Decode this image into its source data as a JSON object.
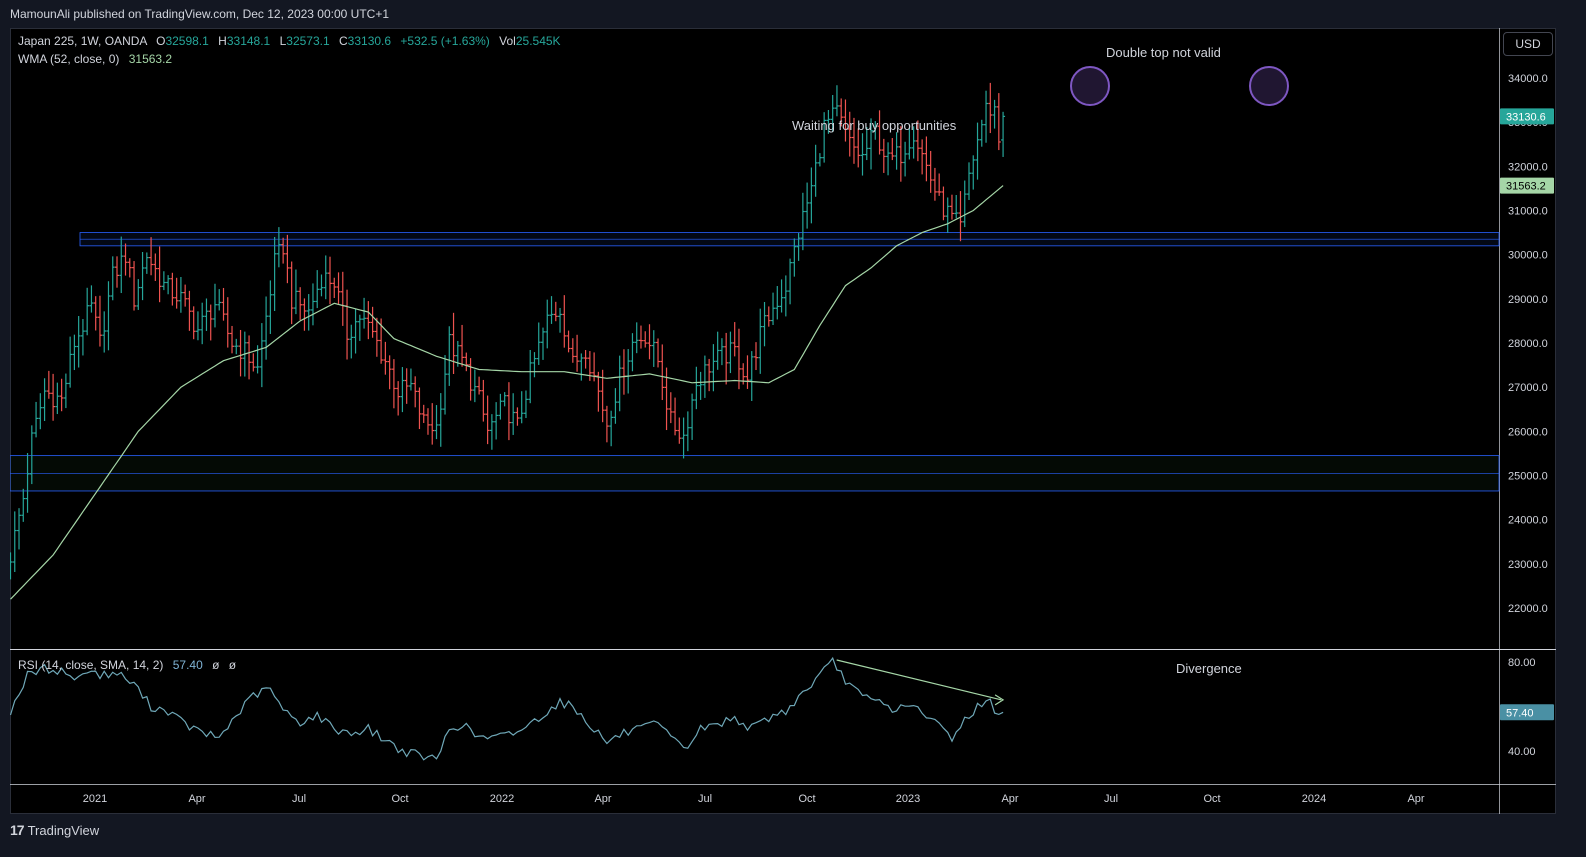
{
  "header": {
    "published_text": "MamounAli published on TradingView.com, Dec 12, 2023 00:00 UTC+1"
  },
  "legend": {
    "symbol": "Japan 225, 1W, OANDA",
    "o_label": "O",
    "o": "32598.1",
    "h_label": "H",
    "h": "33148.1",
    "l_label": "L",
    "l": "32573.1",
    "c_label": "C",
    "c": "33130.6",
    "change": "+532.5 (+1.63%)",
    "vol_label": "Vol",
    "vol": "25.545K",
    "wma_label": "WMA (52, close, 0)",
    "wma_value": "31563.2",
    "rsi_label": "RSI (14, close, SMA, 14, 2)",
    "rsi_value": "57.40",
    "rsi_extra1": "ø",
    "rsi_extra2": "ø"
  },
  "currency_button": "USD",
  "annotations": {
    "double_top": "Double top not valid",
    "waiting": "Waiting for buy opportunities",
    "divergence": "Divergence"
  },
  "badges": {
    "price": "33130.6",
    "wma": "31563.2",
    "rsi": "57.40"
  },
  "footer": {
    "logo_text": "TradingView",
    "logo_mark": "17"
  },
  "colors": {
    "up": "#26a69a",
    "down": "#ef5350",
    "wma": "#a5d6a7",
    "rsi": "#6fa8b8",
    "zone": "#2962ff",
    "circle": "#7e57c2"
  },
  "chart_data": [
    {
      "type": "ohlc",
      "ylim": [
        21200,
        34800
      ],
      "y_ticks": [
        "22000.0",
        "23000.0",
        "24000.0",
        "25000.0",
        "26000.0",
        "27000.0",
        "28000.0",
        "29000.0",
        "30000.0",
        "31000.0",
        "32000.0",
        "33000.0",
        "34000.0"
      ],
      "x_ticks": [
        "2021",
        "Apr",
        "Jul",
        "Oct",
        "2022",
        "Apr",
        "Jul",
        "Oct",
        "2023",
        "Apr",
        "Jul",
        "Oct",
        "2024",
        "Apr"
      ],
      "resistance_zone": [
        30200,
        30500
      ],
      "support_zone": [
        24650,
        25450
      ],
      "anchors": [
        [
          0,
          23200
        ],
        [
          3,
          24500
        ],
        [
          5,
          25800
        ],
        [
          8,
          26900
        ],
        [
          12,
          26700
        ],
        [
          15,
          28000
        ],
        [
          19,
          28800
        ],
        [
          21,
          28000
        ],
        [
          24,
          29500
        ],
        [
          27,
          30000
        ],
        [
          29,
          29000
        ],
        [
          32,
          30000
        ],
        [
          36,
          29300
        ],
        [
          40,
          29000
        ],
        [
          44,
          28300
        ],
        [
          48,
          28900
        ],
        [
          52,
          28000
        ],
        [
          55,
          27800
        ],
        [
          58,
          27400
        ],
        [
          62,
          29800
        ],
        [
          64,
          30200
        ],
        [
          66,
          29000
        ],
        [
          70,
          28700
        ],
        [
          73,
          29500
        ],
        [
          76,
          29400
        ],
        [
          79,
          28200
        ],
        [
          82,
          28600
        ],
        [
          85,
          28200
        ],
        [
          88,
          27600
        ],
        [
          91,
          26900
        ],
        [
          94,
          27000
        ],
        [
          97,
          26200
        ],
        [
          100,
          26100
        ],
        [
          103,
          28000
        ],
        [
          106,
          27600
        ],
        [
          110,
          26700
        ],
        [
          112,
          26000
        ],
        [
          116,
          26600
        ],
        [
          119,
          26100
        ],
        [
          122,
          27300
        ],
        [
          126,
          28500
        ],
        [
          129,
          28800
        ],
        [
          132,
          27500
        ],
        [
          135,
          27900
        ],
        [
          138,
          26900
        ],
        [
          140,
          26200
        ],
        [
          143,
          27200
        ],
        [
          146,
          28000
        ],
        [
          149,
          28200
        ],
        [
          152,
          27600
        ],
        [
          155,
          26200
        ],
        [
          158,
          25900
        ],
        [
          161,
          27100
        ],
        [
          164,
          27500
        ],
        [
          167,
          27700
        ],
        [
          170,
          27800
        ],
        [
          173,
          27200
        ],
        [
          176,
          28200
        ],
        [
          179,
          28800
        ],
        [
          182,
          29300
        ],
        [
          185,
          30500
        ],
        [
          188,
          31500
        ],
        [
          191,
          32900
        ],
        [
          194,
          33200
        ],
        [
          197,
          32500
        ],
        [
          200,
          32200
        ],
        [
          203,
          32800
        ],
        [
          206,
          32100
        ],
        [
          209,
          32300
        ],
        [
          212,
          32800
        ],
        [
          215,
          32000
        ],
        [
          218,
          31200
        ],
        [
          221,
          30800
        ],
        [
          223,
          30600
        ],
        [
          225,
          31800
        ],
        [
          227,
          32600
        ],
        [
          229,
          33300
        ],
        [
          231,
          33300
        ],
        [
          232,
          32600
        ],
        [
          233,
          33130
        ]
      ],
      "wma_anchors": [
        [
          0,
          22200
        ],
        [
          10,
          23200
        ],
        [
          20,
          24600
        ],
        [
          30,
          26000
        ],
        [
          40,
          27000
        ],
        [
          50,
          27600
        ],
        [
          60,
          27900
        ],
        [
          68,
          28500
        ],
        [
          76,
          28900
        ],
        [
          84,
          28700
        ],
        [
          90,
          28100
        ],
        [
          100,
          27700
        ],
        [
          110,
          27400
        ],
        [
          120,
          27350
        ],
        [
          130,
          27350
        ],
        [
          140,
          27200
        ],
        [
          150,
          27300
        ],
        [
          160,
          27100
        ],
        [
          170,
          27150
        ],
        [
          178,
          27100
        ],
        [
          184,
          27400
        ],
        [
          190,
          28400
        ],
        [
          196,
          29300
        ],
        [
          202,
          29700
        ],
        [
          208,
          30200
        ],
        [
          214,
          30500
        ],
        [
          220,
          30700
        ],
        [
          226,
          31000
        ],
        [
          233,
          31563
        ]
      ]
    },
    {
      "type": "line",
      "ylim": [
        30,
        85
      ],
      "y_ticks": [
        "40.00",
        "57.40",
        "80.00"
      ],
      "anchors": [
        [
          0,
          58
        ],
        [
          4,
          74
        ],
        [
          8,
          77
        ],
        [
          12,
          76
        ],
        [
          16,
          72
        ],
        [
          18,
          77
        ],
        [
          21,
          74
        ],
        [
          25,
          75
        ],
        [
          29,
          70
        ],
        [
          33,
          60
        ],
        [
          37,
          58
        ],
        [
          41,
          52
        ],
        [
          45,
          48
        ],
        [
          49,
          46
        ],
        [
          53,
          56
        ],
        [
          57,
          65
        ],
        [
          61,
          68
        ],
        [
          64,
          58
        ],
        [
          68,
          53
        ],
        [
          72,
          56
        ],
        [
          76,
          50
        ],
        [
          80,
          48
        ],
        [
          84,
          50
        ],
        [
          88,
          45
        ],
        [
          92,
          40
        ],
        [
          96,
          38
        ],
        [
          100,
          36
        ],
        [
          103,
          50
        ],
        [
          106,
          52
        ],
        [
          110,
          46
        ],
        [
          114,
          46
        ],
        [
          118,
          48
        ],
        [
          122,
          52
        ],
        [
          126,
          58
        ],
        [
          129,
          62
        ],
        [
          132,
          60
        ],
        [
          136,
          52
        ],
        [
          140,
          44
        ],
        [
          144,
          48
        ],
        [
          148,
          50
        ],
        [
          152,
          52
        ],
        [
          156,
          44
        ],
        [
          159,
          42
        ],
        [
          162,
          50
        ],
        [
          166,
          52
        ],
        [
          170,
          55
        ],
        [
          174,
          50
        ],
        [
          178,
          55
        ],
        [
          182,
          58
        ],
        [
          186,
          66
        ],
        [
          190,
          74
        ],
        [
          193,
          80
        ],
        [
          196,
          72
        ],
        [
          200,
          64
        ],
        [
          204,
          62
        ],
        [
          208,
          58
        ],
        [
          211,
          62
        ],
        [
          214,
          56
        ],
        [
          218,
          52
        ],
        [
          221,
          46
        ],
        [
          224,
          54
        ],
        [
          227,
          60
        ],
        [
          230,
          62
        ],
        [
          232,
          56
        ],
        [
          233,
          57.4
        ]
      ],
      "divergence_from": [
        193,
        80
      ],
      "divergence_to": [
        233,
        63
      ]
    }
  ]
}
